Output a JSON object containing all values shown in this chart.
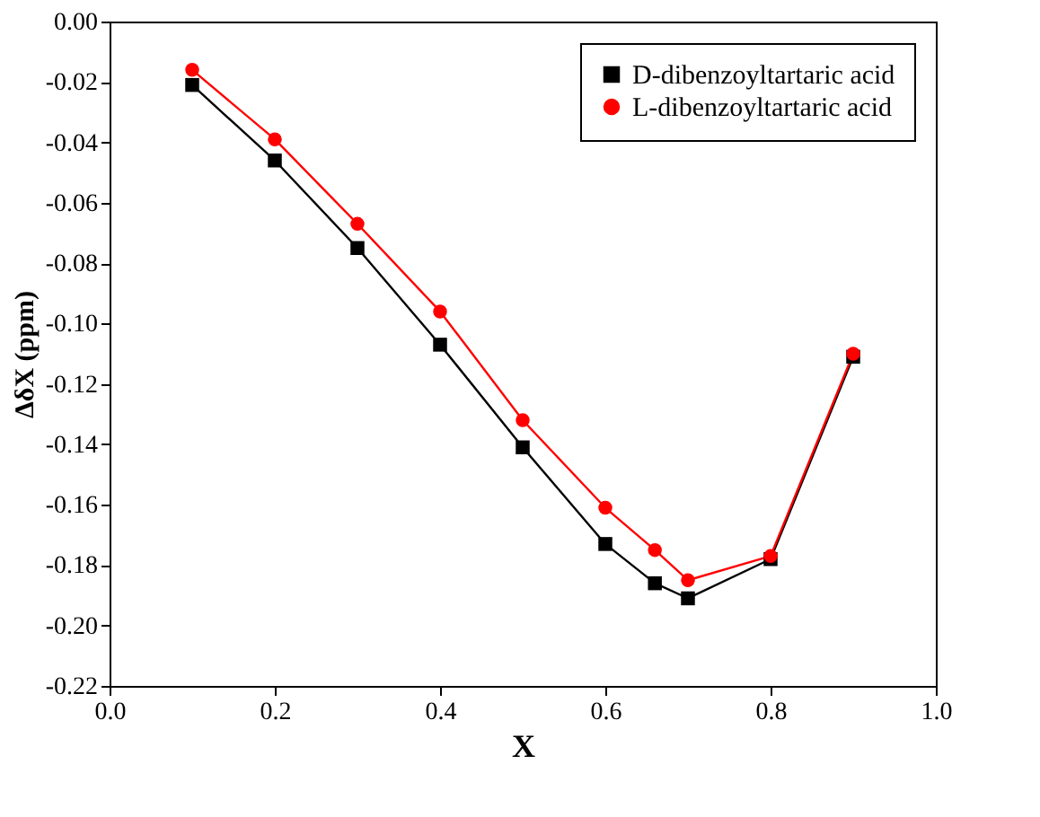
{
  "chart_data": {
    "type": "line",
    "xlabel": "X",
    "ylabel": "ΔδX (ppm)",
    "x": [
      0.1,
      0.2,
      0.3,
      0.4,
      0.5,
      0.6,
      0.66,
      0.7,
      0.8,
      0.9
    ],
    "series": [
      {
        "name": "D-dibenzoyltartaric acid",
        "color": "#000000",
        "marker": "square",
        "values": [
          -0.021,
          -0.046,
          -0.075,
          -0.107,
          -0.141,
          -0.173,
          -0.186,
          -0.191,
          -0.178,
          -0.111
        ]
      },
      {
        "name": "L-dibenzoyltartaric acid",
        "color": "#ff0000",
        "marker": "circle",
        "values": [
          -0.016,
          -0.039,
          -0.067,
          -0.096,
          -0.132,
          -0.161,
          -0.175,
          -0.185,
          -0.177,
          -0.11
        ]
      }
    ],
    "xlim": [
      0.0,
      1.0
    ],
    "xticks": [
      {
        "value": 0.0,
        "label": "0.0"
      },
      0.2,
      0.4,
      0.6,
      0.8,
      {
        "value": 1.0,
        "label": "1.0"
      }
    ],
    "ylim": [
      -0.22,
      0.0
    ],
    "yticks": [
      {
        "value": -0.22,
        "label": "-0.22"
      },
      {
        "value": -0.2,
        "label": "-0.20"
      },
      {
        "value": -0.18,
        "label": "-0.18"
      },
      {
        "value": -0.16,
        "label": "-0.16"
      },
      {
        "value": -0.14,
        "label": "-0.14"
      },
      {
        "value": -0.12,
        "label": "-0.12"
      },
      {
        "value": -0.1,
        "label": "-0.10"
      },
      {
        "value": -0.08,
        "label": "-0.08"
      },
      {
        "value": -0.06,
        "label": "-0.06"
      },
      {
        "value": -0.04,
        "label": "-0.04"
      },
      {
        "value": -0.02,
        "label": "-0.02"
      },
      {
        "value": 0.0,
        "label": "0.00"
      }
    ],
    "grid": false,
    "legend": "top right",
    "line_style": "solid"
  }
}
